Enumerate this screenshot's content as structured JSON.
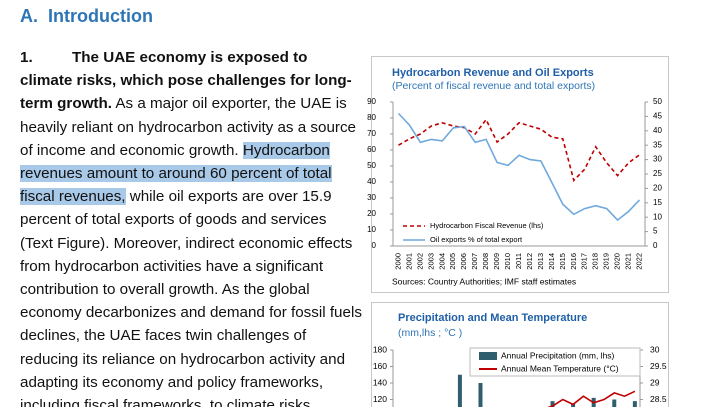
{
  "heading": "A.  Introduction",
  "paragraph": {
    "number": "1.",
    "lead": "The UAE economy is exposed to climate risks, which pose challenges for long-term growth.",
    "text_before": "As a major oil exporter, the UAE is heavily reliant on hydrocarbon activity as a source of income and economic growth.",
    "highlight": "Hydrocarbon revenues amount to around 60 percent of total fiscal revenues,",
    "text_after": "while oil exports are over 15.9 percent of total exports of goods and services (Text Figure). Moreover, indirect economic effects from hydrocarbon activities have a significant contribution to overall growth. As the global economy decarbonizes and demand for fossil fuels declines, the UAE faces twin challenges of reducing its reliance on hydrocarbon activity and adapting its economy and policy frameworks, including fiscal frameworks, to climate risks."
  },
  "chart_data": [
    {
      "type": "line",
      "title": "Hydrocarbon Revenue and Oil Exports",
      "subtitle": "(Percent of fiscal revenue and total exports)",
      "source": "Sources: Country Authorities; IMF staff estimates",
      "categories": [
        "2000",
        "2001",
        "2002",
        "2003",
        "2004",
        "2005",
        "2006",
        "2007",
        "2008",
        "2009",
        "2010",
        "2011",
        "2012",
        "2013",
        "2014",
        "2015",
        "2016",
        "2017",
        "2018",
        "2019",
        "2020",
        "2021",
        "2022"
      ],
      "series": [
        {
          "name": "Hydrocarbon Fiscal Revenue (lhs)",
          "color": "#c00000",
          "style": "dashed",
          "values": [
            63,
            67,
            70,
            75,
            77,
            75,
            74,
            70,
            79,
            65,
            70,
            77,
            75,
            73,
            68,
            67,
            41,
            48,
            62,
            52,
            44,
            52,
            57
          ]
        },
        {
          "name": "Oil exports % of total export",
          "color": "#6fa8dc",
          "style": "solid",
          "axis": "y2",
          "values": [
            46,
            42,
            36,
            37,
            36.5,
            41,
            41.5,
            36,
            37,
            29,
            28,
            31.5,
            30,
            29.5,
            22,
            14.5,
            11,
            13,
            14,
            13,
            9,
            12,
            16
          ]
        }
      ],
      "ylim": [
        0,
        90
      ],
      "yticks": [
        0,
        10,
        20,
        30,
        40,
        50,
        60,
        70,
        80,
        90
      ],
      "y2lim": [
        0,
        50
      ],
      "y2ticks": [
        0,
        5,
        10,
        15,
        20,
        25,
        30,
        35,
        40,
        45,
        50
      ],
      "legend": "bottom-left"
    },
    {
      "type": "bar",
      "title": "Precipitation and Mean Temperature",
      "subtitle": "(mm,lhs ; °C )",
      "categories": [
        null,
        null,
        null,
        null,
        null,
        null,
        null,
        null,
        null,
        null,
        null,
        null,
        null,
        null,
        null,
        null,
        null,
        null,
        null,
        null,
        null,
        null,
        null,
        null
      ],
      "series": [
        {
          "name": "Annual Precipitation (mm, lhs)",
          "color": "#2f5f6f",
          "type": "bar",
          "values": [
            null,
            null,
            null,
            null,
            null,
            null,
            150,
            null,
            140,
            null,
            null,
            null,
            null,
            null,
            null,
            118,
            null,
            115,
            null,
            122,
            null,
            120,
            null,
            118
          ]
        },
        {
          "name": "Annual Mean Temperature (°C)",
          "color": "#c00000",
          "type": "line",
          "axis": "y2",
          "values": [
            null,
            null,
            null,
            null,
            null,
            null,
            null,
            null,
            null,
            null,
            null,
            null,
            null,
            null,
            28.2,
            28.3,
            28.5,
            28.35,
            28.6,
            28.4,
            28.5,
            28.7,
            28.6,
            28.75
          ]
        }
      ],
      "ylim": [
        100,
        180
      ],
      "yticks": [
        120,
        140,
        160,
        180
      ],
      "y2lim": [
        28,
        30
      ],
      "y2ticks": [
        28.5,
        29,
        29.5,
        30
      ],
      "legend": "top-right"
    }
  ]
}
